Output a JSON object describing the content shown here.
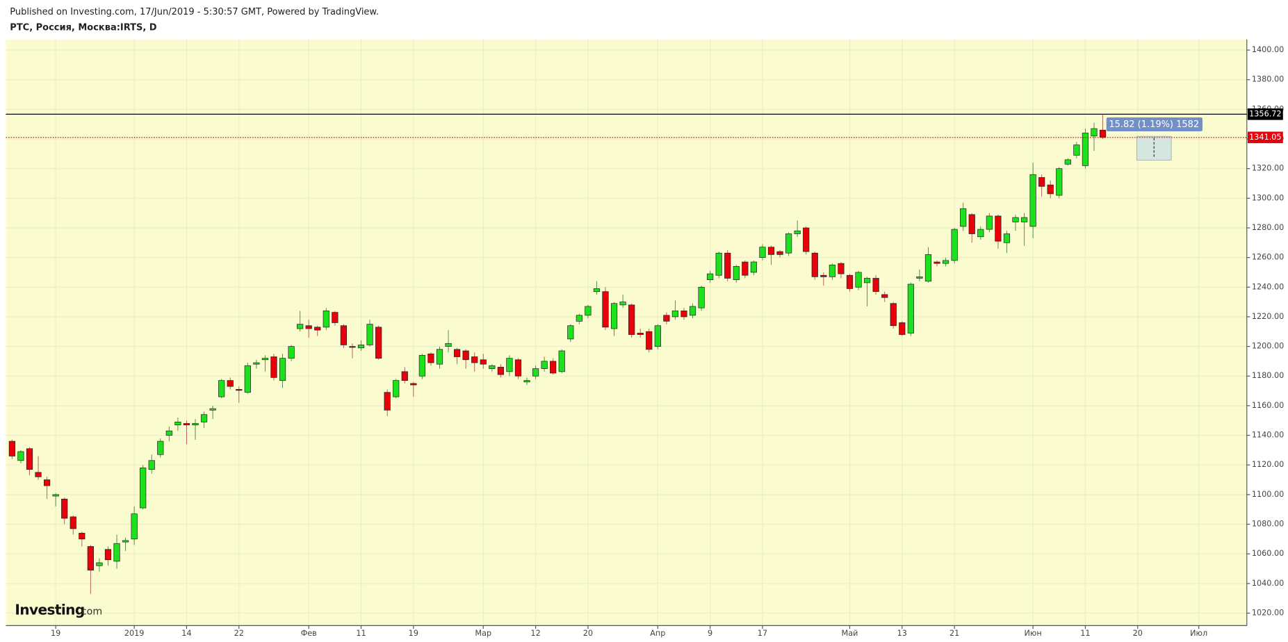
{
  "header": {
    "published": "Published on Investing.com, 17/Jun/2019 - 5:30:57 GMT, Powered by TradingView.",
    "symbol": "РТС, Россия, Москва:IRTS, D"
  },
  "logo": {
    "brand": "Investing",
    "suffix": ".com"
  },
  "chart_data": {
    "type": "candlestick",
    "categories": [
      null,
      null,
      null,
      null,
      null,
      "19",
      null,
      null,
      null,
      null,
      null,
      null,
      null,
      null,
      "2019",
      null,
      null,
      null,
      null,
      null,
      "14",
      null,
      null,
      null,
      null,
      null,
      "22",
      null,
      null,
      null,
      null,
      null,
      null,
      null,
      "Фев",
      null,
      null,
      null,
      null,
      null,
      "11",
      null,
      null,
      null,
      null,
      null,
      "19",
      null,
      null,
      null,
      null,
      null,
      null,
      null,
      "Мар",
      null,
      null,
      null,
      null,
      null,
      "12",
      null,
      null,
      null,
      null,
      null,
      "20",
      null,
      null,
      null,
      null,
      null,
      null,
      null,
      "Апр",
      null,
      null,
      null,
      null,
      null,
      "9",
      null,
      null,
      null,
      null,
      null,
      "17",
      null,
      null,
      null,
      null,
      null,
      null,
      null,
      null,
      null,
      "Май",
      null,
      null,
      null,
      null,
      null,
      "13",
      null,
      null,
      null,
      null,
      null,
      "21",
      null,
      null,
      null,
      null,
      null,
      null,
      null,
      null,
      "Июн",
      null,
      null,
      null,
      null,
      null,
      "11",
      null,
      null,
      null,
      null,
      null,
      "20",
      null,
      null,
      null,
      null,
      null,
      null,
      "Июл",
      null,
      null,
      null,
      null,
      null
    ],
    "open": [
      1136,
      1123,
      1131,
      1115,
      1110,
      1099,
      1097,
      1085,
      1074,
      1065,
      1052,
      1063,
      1055,
      1068,
      1070,
      1091,
      1117,
      1127,
      1140,
      1147,
      1148,
      1147,
      1149,
      1157,
      1166,
      1177,
      1171,
      1169,
      1188,
      1191,
      1193,
      1177,
      1192,
      1212,
      1214,
      1213,
      1213,
      1223,
      1214,
      1200,
      1199,
      1201,
      1213,
      1169,
      1166,
      1183,
      1175,
      1180,
      1195,
      1188,
      1200,
      1198,
      1197,
      1193,
      1191,
      1185,
      1186,
      1183,
      1191,
      1176,
      1180,
      1185,
      1190,
      1183,
      1205,
      1217,
      1221,
      1237,
      1237,
      1212,
      1228,
      1228,
      1209,
      1210,
      1200,
      1221,
      1220,
      1224,
      1221,
      1226,
      1245,
      1248,
      1263,
      1245,
      1257,
      1250,
      1260,
      1267,
      1264,
      1263,
      1276,
      1280,
      1263,
      1248,
      1247,
      1256,
      1248,
      1240,
      1243,
      1246,
      1235,
      1229,
      1216,
      1209,
      1246,
      1244,
      1257,
      1256,
      1258,
      1281,
      1289,
      1274,
      1279,
      1288,
      1270,
      1284,
      1284,
      1281,
      1314,
      1309,
      1302,
      1323,
      1329,
      1322,
      1342,
      1346,
      null,
      null,
      null,
      null,
      null,
      null,
      null,
      null,
      null,
      null,
      null,
      null,
      null,
      null,
      null,
      null
    ],
    "high": [
      1137,
      1130,
      1132,
      1126,
      1112,
      1101,
      1098,
      1086,
      1075,
      1066,
      1057,
      1065,
      1073,
      1071,
      1092,
      1120,
      1127,
      1138,
      1146,
      1152,
      1150,
      1151,
      1156,
      1160,
      1178,
      1179,
      1173,
      1189,
      1191,
      1194,
      1195,
      1195,
      1201,
      1224,
      1218,
      1214,
      1226,
      1224,
      1215,
      1202,
      1204,
      1218,
      1214,
      1171,
      1178,
      1186,
      1176,
      1195,
      1196,
      1200,
      1211,
      1199,
      1198,
      1196,
      1195,
      1188,
      1188,
      1194,
      1192,
      1179,
      1187,
      1193,
      1192,
      1198,
      1215,
      1222,
      1228,
      1244,
      1240,
      1230,
      1235,
      1229,
      1212,
      1212,
      1215,
      1223,
      1231,
      1226,
      1229,
      1241,
      1251,
      1264,
      1265,
      1255,
      1258,
      1258,
      1269,
      1268,
      1265,
      1277,
      1285,
      1281,
      1264,
      1250,
      1256,
      1257,
      1249,
      1251,
      1247,
      1248,
      1237,
      1230,
      1217,
      1243,
      1252,
      1267,
      1258,
      1260,
      1280,
      1297,
      1290,
      1281,
      1290,
      1289,
      1278,
      1289,
      1290,
      1324,
      1316,
      1312,
      1321,
      1327,
      1338,
      1347,
      1351,
      1356.72,
      null,
      null,
      null,
      null,
      null,
      null,
      null,
      null,
      null,
      null,
      null,
      null,
      null,
      null,
      null,
      null
    ],
    "low": [
      1124,
      1121,
      1113,
      1110,
      1097,
      1092,
      1080,
      1073,
      1065,
      1033,
      1048,
      1052,
      1050,
      1062,
      1066,
      1090,
      1114,
      1125,
      1136,
      1143,
      1134,
      1137,
      1145,
      1151,
      1165,
      1171,
      1162,
      1168,
      1185,
      1183,
      1177,
      1172,
      1190,
      1210,
      1206,
      1207,
      1211,
      1214,
      1199,
      1192,
      1197,
      1200,
      1191,
      1153,
      1165,
      1175,
      1166,
      1178,
      1187,
      1185,
      1196,
      1188,
      1185,
      1183,
      1185,
      1183,
      1179,
      1180,
      1178,
      1174,
      1178,
      1183,
      1181,
      1182,
      1203,
      1215,
      1219,
      1235,
      1211,
      1207,
      1226,
      1206,
      1206,
      1196,
      1198,
      1215,
      1218,
      1218,
      1219,
      1224,
      1243,
      1246,
      1244,
      1243,
      1246,
      1248,
      1258,
      1255,
      1260,
      1261,
      1274,
      1262,
      1245,
      1241,
      1245,
      1246,
      1237,
      1238,
      1227,
      1235,
      1230,
      1212,
      1207,
      1207,
      1244,
      1243,
      1254,
      1254,
      1256,
      1278,
      1270,
      1272,
      1277,
      1266,
      1263,
      1278,
      1268,
      1273,
      1301,
      1300,
      1300,
      1322,
      1327,
      1320,
      1332,
      1340,
      null,
      null,
      null,
      null,
      null,
      null,
      null,
      null,
      null,
      null,
      null,
      null,
      null,
      null,
      null,
      null
    ],
    "close": [
      1126,
      1129,
      1117,
      1112,
      1106,
      1100,
      1084,
      1077,
      1070,
      1049,
      1054,
      1056,
      1067,
      1069,
      1087,
      1118,
      1123,
      1136,
      1143,
      1149,
      1147,
      1148,
      1154,
      1158,
      1177,
      1173,
      1170.5,
      1187,
      1189,
      1192,
      1179,
      1192,
      1200,
      1215,
      1212,
      1211,
      1224,
      1216,
      1201,
      1199.5,
      1201,
      1215,
      1192,
      1157,
      1177,
      1177,
      1174,
      1194,
      1189,
      1198,
      1202,
      1193,
      1191,
      1189,
      1188,
      1187,
      1181,
      1192,
      1180,
      1177,
      1185,
      1190,
      1182,
      1197,
      1214,
      1221,
      1227,
      1239,
      1213,
      1229,
      1230,
      1208,
      1208,
      1198,
      1214,
      1217,
      1224,
      1220,
      1227,
      1240,
      1249,
      1263,
      1246,
      1254,
      1248,
      1257,
      1267,
      1262,
      1262,
      1276,
      1278,
      1264,
      1247,
      1247,
      1255,
      1249,
      1239,
      1250,
      1246,
      1237,
      1233,
      1214,
      1208,
      1242,
      1247,
      1262,
      1256,
      1258,
      1279,
      1293,
      1276,
      1279,
      1288,
      1271,
      1276,
      1287,
      1287,
      1316,
      1308,
      1303,
      1320,
      1326,
      1336,
      1344,
      1347,
      1341.05,
      null,
      null,
      null,
      null,
      null,
      null,
      null,
      null,
      null,
      null,
      null,
      null,
      null,
      null,
      null,
      null
    ],
    "up_color": "#1ee11e",
    "down_color": "#e8000b",
    "ylim": [
      1011.6,
      1407.2
    ],
    "yticks": [
      {
        "value": 1020,
        "label": "1020.00"
      },
      {
        "value": 1040,
        "label": "1040.00"
      },
      {
        "value": 1060,
        "label": "1060.00"
      },
      {
        "value": 1080,
        "label": "1080.00"
      },
      {
        "value": 1100,
        "label": "1100.00"
      },
      {
        "value": 1120,
        "label": "1120.00"
      },
      {
        "value": 1140,
        "label": "1140.00"
      },
      {
        "value": 1160,
        "label": "1160.00"
      },
      {
        "value": 1180,
        "label": "1180.00"
      },
      {
        "value": 1200,
        "label": "1200.00"
      },
      {
        "value": 1220,
        "label": "1220.00"
      },
      {
        "value": 1240,
        "label": "1240.00"
      },
      {
        "value": 1260,
        "label": "1260.00"
      },
      {
        "value": 1280,
        "label": "1280.00"
      },
      {
        "value": 1300,
        "label": "1300.00"
      },
      {
        "value": 1320,
        "label": "1320.00"
      },
      {
        "value": 1340,
        "label": "1340.00"
      },
      {
        "value": 1360,
        "label": "1360.00"
      },
      {
        "value": 1380,
        "label": "1380.00"
      },
      {
        "value": 1400,
        "label": "1400.00"
      }
    ],
    "grid": true,
    "high_line": 1356.72,
    "last_price": 1341.05,
    "tooltip": "15.82 (1.19%) 1582"
  }
}
